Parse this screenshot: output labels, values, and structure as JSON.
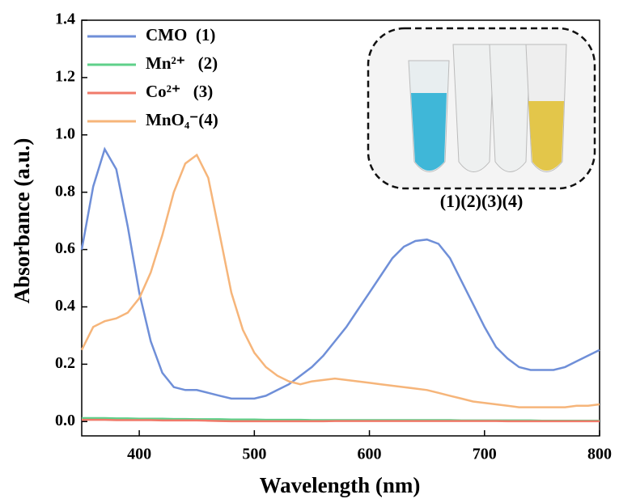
{
  "chart_data": {
    "type": "line",
    "xlabel": "Wavelength (nm)",
    "ylabel": "Absorbance (a.u.)",
    "annotation": "(1)(2)(3)(4)",
    "x": [
      350,
      360,
      370,
      380,
      390,
      400,
      410,
      420,
      430,
      440,
      450,
      460,
      470,
      480,
      490,
      500,
      510,
      520,
      530,
      540,
      550,
      560,
      570,
      580,
      590,
      600,
      610,
      620,
      630,
      640,
      650,
      660,
      670,
      680,
      690,
      700,
      710,
      720,
      730,
      740,
      750,
      760,
      770,
      780,
      790,
      800
    ],
    "series": [
      {
        "name": "CMO  (1)",
        "color": "#6f8fd8",
        "values": [
          0.6,
          0.82,
          0.95,
          0.88,
          0.68,
          0.45,
          0.28,
          0.17,
          0.12,
          0.11,
          0.11,
          0.1,
          0.09,
          0.08,
          0.08,
          0.08,
          0.09,
          0.11,
          0.13,
          0.16,
          0.19,
          0.23,
          0.28,
          0.33,
          0.39,
          0.45,
          0.51,
          0.57,
          0.61,
          0.63,
          0.635,
          0.62,
          0.57,
          0.49,
          0.41,
          0.33,
          0.26,
          0.22,
          0.19,
          0.18,
          0.18,
          0.18,
          0.19,
          0.21,
          0.23,
          0.25
        ]
      },
      {
        "name": "Mn²⁺   (2)",
        "color": "#5fd08a",
        "values": [
          0.012,
          0.012,
          0.012,
          0.011,
          0.011,
          0.01,
          0.01,
          0.01,
          0.009,
          0.009,
          0.008,
          0.008,
          0.008,
          0.007,
          0.007,
          0.007,
          0.006,
          0.006,
          0.006,
          0.006,
          0.005,
          0.005,
          0.005,
          0.005,
          0.005,
          0.005,
          0.005,
          0.005,
          0.005,
          0.005,
          0.005,
          0.005,
          0.005,
          0.004,
          0.004,
          0.004,
          0.004,
          0.004,
          0.004,
          0.004,
          0.003,
          0.003,
          0.003,
          0.003,
          0.003,
          0.003
        ]
      },
      {
        "name": "Co²⁺   (3)",
        "color": "#f07a6a",
        "values": [
          0.006,
          0.006,
          0.006,
          0.005,
          0.005,
          0.005,
          0.005,
          0.004,
          0.004,
          0.004,
          0.004,
          0.003,
          0.002,
          0.001,
          0.001,
          0.001,
          0.001,
          0.001,
          0.001,
          0.001,
          0.001,
          0.001,
          0.002,
          0.002,
          0.002,
          0.002,
          0.002,
          0.002,
          0.002,
          0.002,
          0.002,
          0.002,
          0.002,
          0.002,
          0.002,
          0.002,
          0.002,
          0.001,
          0.001,
          0.001,
          0.001,
          0.001,
          0.001,
          0.001,
          0.001,
          0.001
        ]
      },
      {
        "name": "MnO₄⁻(4)",
        "color": "#f6b57a",
        "values": [
          0.25,
          0.33,
          0.35,
          0.36,
          0.38,
          0.43,
          0.52,
          0.65,
          0.8,
          0.9,
          0.93,
          0.85,
          0.65,
          0.45,
          0.32,
          0.24,
          0.19,
          0.16,
          0.14,
          0.13,
          0.14,
          0.145,
          0.15,
          0.145,
          0.14,
          0.135,
          0.13,
          0.125,
          0.12,
          0.115,
          0.11,
          0.1,
          0.09,
          0.08,
          0.07,
          0.065,
          0.06,
          0.055,
          0.05,
          0.05,
          0.05,
          0.05,
          0.05,
          0.055,
          0.055,
          0.06
        ]
      }
    ],
    "xlim": [
      350,
      800
    ],
    "xticks": [
      400,
      500,
      600,
      700,
      800
    ],
    "ylim": [
      -0.05,
      1.4
    ],
    "yticks": [
      {
        "value": 0,
        "label": "0.0"
      },
      0.2,
      0.4,
      0.6,
      0.8,
      {
        "value": 1,
        "label": "1.0"
      },
      1.2,
      1.4
    ]
  }
}
